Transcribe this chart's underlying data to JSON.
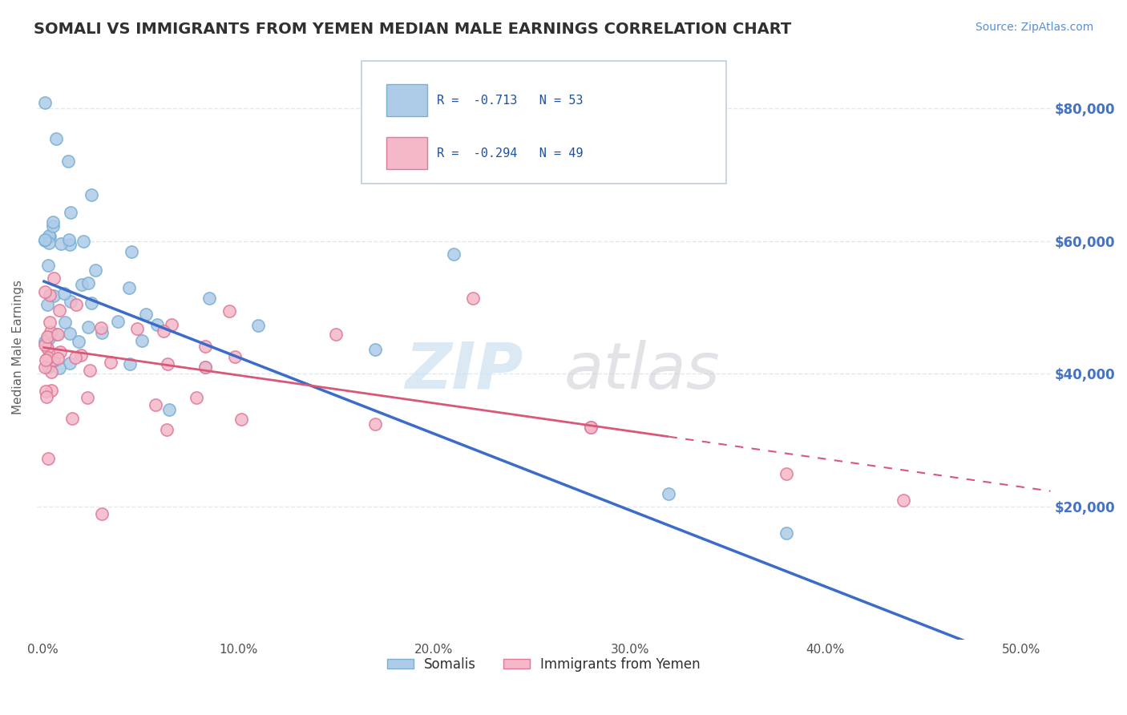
{
  "title": "SOMALI VS IMMIGRANTS FROM YEMEN MEDIAN MALE EARNINGS CORRELATION CHART",
  "source": "Source: ZipAtlas.com",
  "ylabel": "Median Male Earnings",
  "xlim": [
    -0.003,
    0.515
  ],
  "ylim": [
    0,
    88000
  ],
  "somali_color": "#aecce8",
  "somali_edge_color": "#7aafd4",
  "yemen_color": "#f4b8c8",
  "yemen_edge_color": "#e07898",
  "trend_somali_color": "#3a6cc8",
  "trend_yemen_color": "#d85878",
  "watermark_zip_color": "#d0e4f4",
  "watermark_atlas_color": "#d8d8d8",
  "background_color": "#ffffff",
  "grid_color": "#e0e8f0",
  "title_color": "#303030",
  "right_axis_color": "#4472c4",
  "somali_intercept": 54000,
  "somali_slope": -115000,
  "yemen_intercept": 44000,
  "yemen_slope": -42000,
  "legend_text_color": "#2050a0"
}
